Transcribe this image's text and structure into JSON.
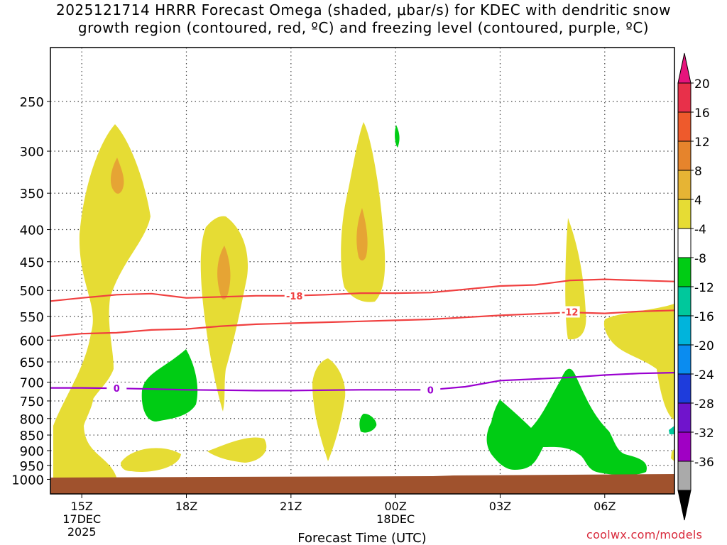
{
  "chart_data": {
    "type": "heatmap",
    "title_line1": "2025121714 HRRR Forecast Omega (shaded, μbar/s) for KDEC with dendritic snow",
    "title_line2": "growth region (contoured, red, ºC) and freezing level (contoured, purple, ºC)",
    "xlabel": "Forecast Time (UTC)",
    "ylabel": "",
    "x_ticks": [
      {
        "hour": 15,
        "label": "15Z",
        "sub1": "17DEC",
        "sub2": "2025"
      },
      {
        "hour": 18,
        "label": "18Z",
        "sub1": "",
        "sub2": ""
      },
      {
        "hour": 21,
        "label": "21Z",
        "sub1": "",
        "sub2": ""
      },
      {
        "hour": 24,
        "label": "00Z",
        "sub1": "18DEC",
        "sub2": ""
      },
      {
        "hour": 27,
        "label": "03Z",
        "sub1": "",
        "sub2": ""
      },
      {
        "hour": 30,
        "label": "06Z",
        "sub1": "",
        "sub2": ""
      }
    ],
    "xlim": [
      14.1,
      32.0
    ],
    "y_ticks": [
      250,
      300,
      350,
      400,
      450,
      500,
      550,
      600,
      650,
      700,
      750,
      800,
      850,
      900,
      950,
      1000
    ],
    "ylim_hpa": [
      1015,
      200
    ],
    "grid": true,
    "colorbar": {
      "labels": [
        "20",
        "16",
        "12",
        "8",
        "4",
        "-4",
        "-8",
        "-12",
        "-16",
        "-20",
        "-24",
        "-28",
        "-32",
        "-36"
      ],
      "colors": [
        "#e8304a",
        "#ee5a2c",
        "#e6842c",
        "#e6b434",
        "#e6dc34",
        "#ffffff",
        "#00cc14",
        "#00c89c",
        "#00b4dc",
        "#0a8cf0",
        "#1e3cdc",
        "#7014cc",
        "#a000c4",
        "#aaaaaa"
      ],
      "top_arrow_color": "#e6147c",
      "bottom_arrow_color": "#000000"
    },
    "contour_labels": {
      "dgz_upper": "-18",
      "dgz_lower": "-12",
      "freezing": "0"
    },
    "contour_colors": {
      "dgz": "#f04040",
      "freezing": "#9a00d0",
      "ground": "#a0522d"
    },
    "dgz_upper_line": [
      [
        14.1,
        520
      ],
      [
        15,
        514
      ],
      [
        16,
        508
      ],
      [
        17,
        506
      ],
      [
        18,
        514
      ],
      [
        19,
        512
      ],
      [
        20,
        510
      ],
      [
        21,
        510
      ],
      [
        22,
        508
      ],
      [
        23,
        505
      ],
      [
        24,
        505
      ],
      [
        25,
        504
      ],
      [
        26,
        498
      ],
      [
        27,
        492
      ],
      [
        28,
        490
      ],
      [
        29,
        482
      ],
      [
        30,
        480
      ],
      [
        31,
        482
      ],
      [
        32,
        484
      ]
    ],
    "dgz_lower_line": [
      [
        14.1,
        592
      ],
      [
        15,
        586
      ],
      [
        16,
        584
      ],
      [
        17,
        578
      ],
      [
        18,
        576
      ],
      [
        19,
        570
      ],
      [
        20,
        566
      ],
      [
        21,
        564
      ],
      [
        22,
        562
      ],
      [
        23,
        560
      ],
      [
        24,
        558
      ],
      [
        25,
        556
      ],
      [
        26,
        552
      ],
      [
        27,
        548
      ],
      [
        28,
        545
      ],
      [
        29,
        542
      ],
      [
        30,
        544
      ],
      [
        31,
        540
      ],
      [
        32,
        538
      ]
    ],
    "freezing_line": [
      [
        14.1,
        715
      ],
      [
        15,
        715
      ],
      [
        16,
        716
      ],
      [
        17,
        718
      ],
      [
        18,
        720
      ],
      [
        19,
        721
      ],
      [
        20,
        722
      ],
      [
        21,
        722
      ],
      [
        22,
        721
      ],
      [
        23,
        720
      ],
      [
        24,
        720
      ],
      [
        25,
        720
      ],
      [
        26,
        712
      ],
      [
        27,
        696
      ],
      [
        28,
        692
      ],
      [
        29,
        688
      ],
      [
        30,
        682
      ],
      [
        31,
        678
      ],
      [
        32,
        676
      ]
    ]
  },
  "credit": "coolwx.com/models"
}
